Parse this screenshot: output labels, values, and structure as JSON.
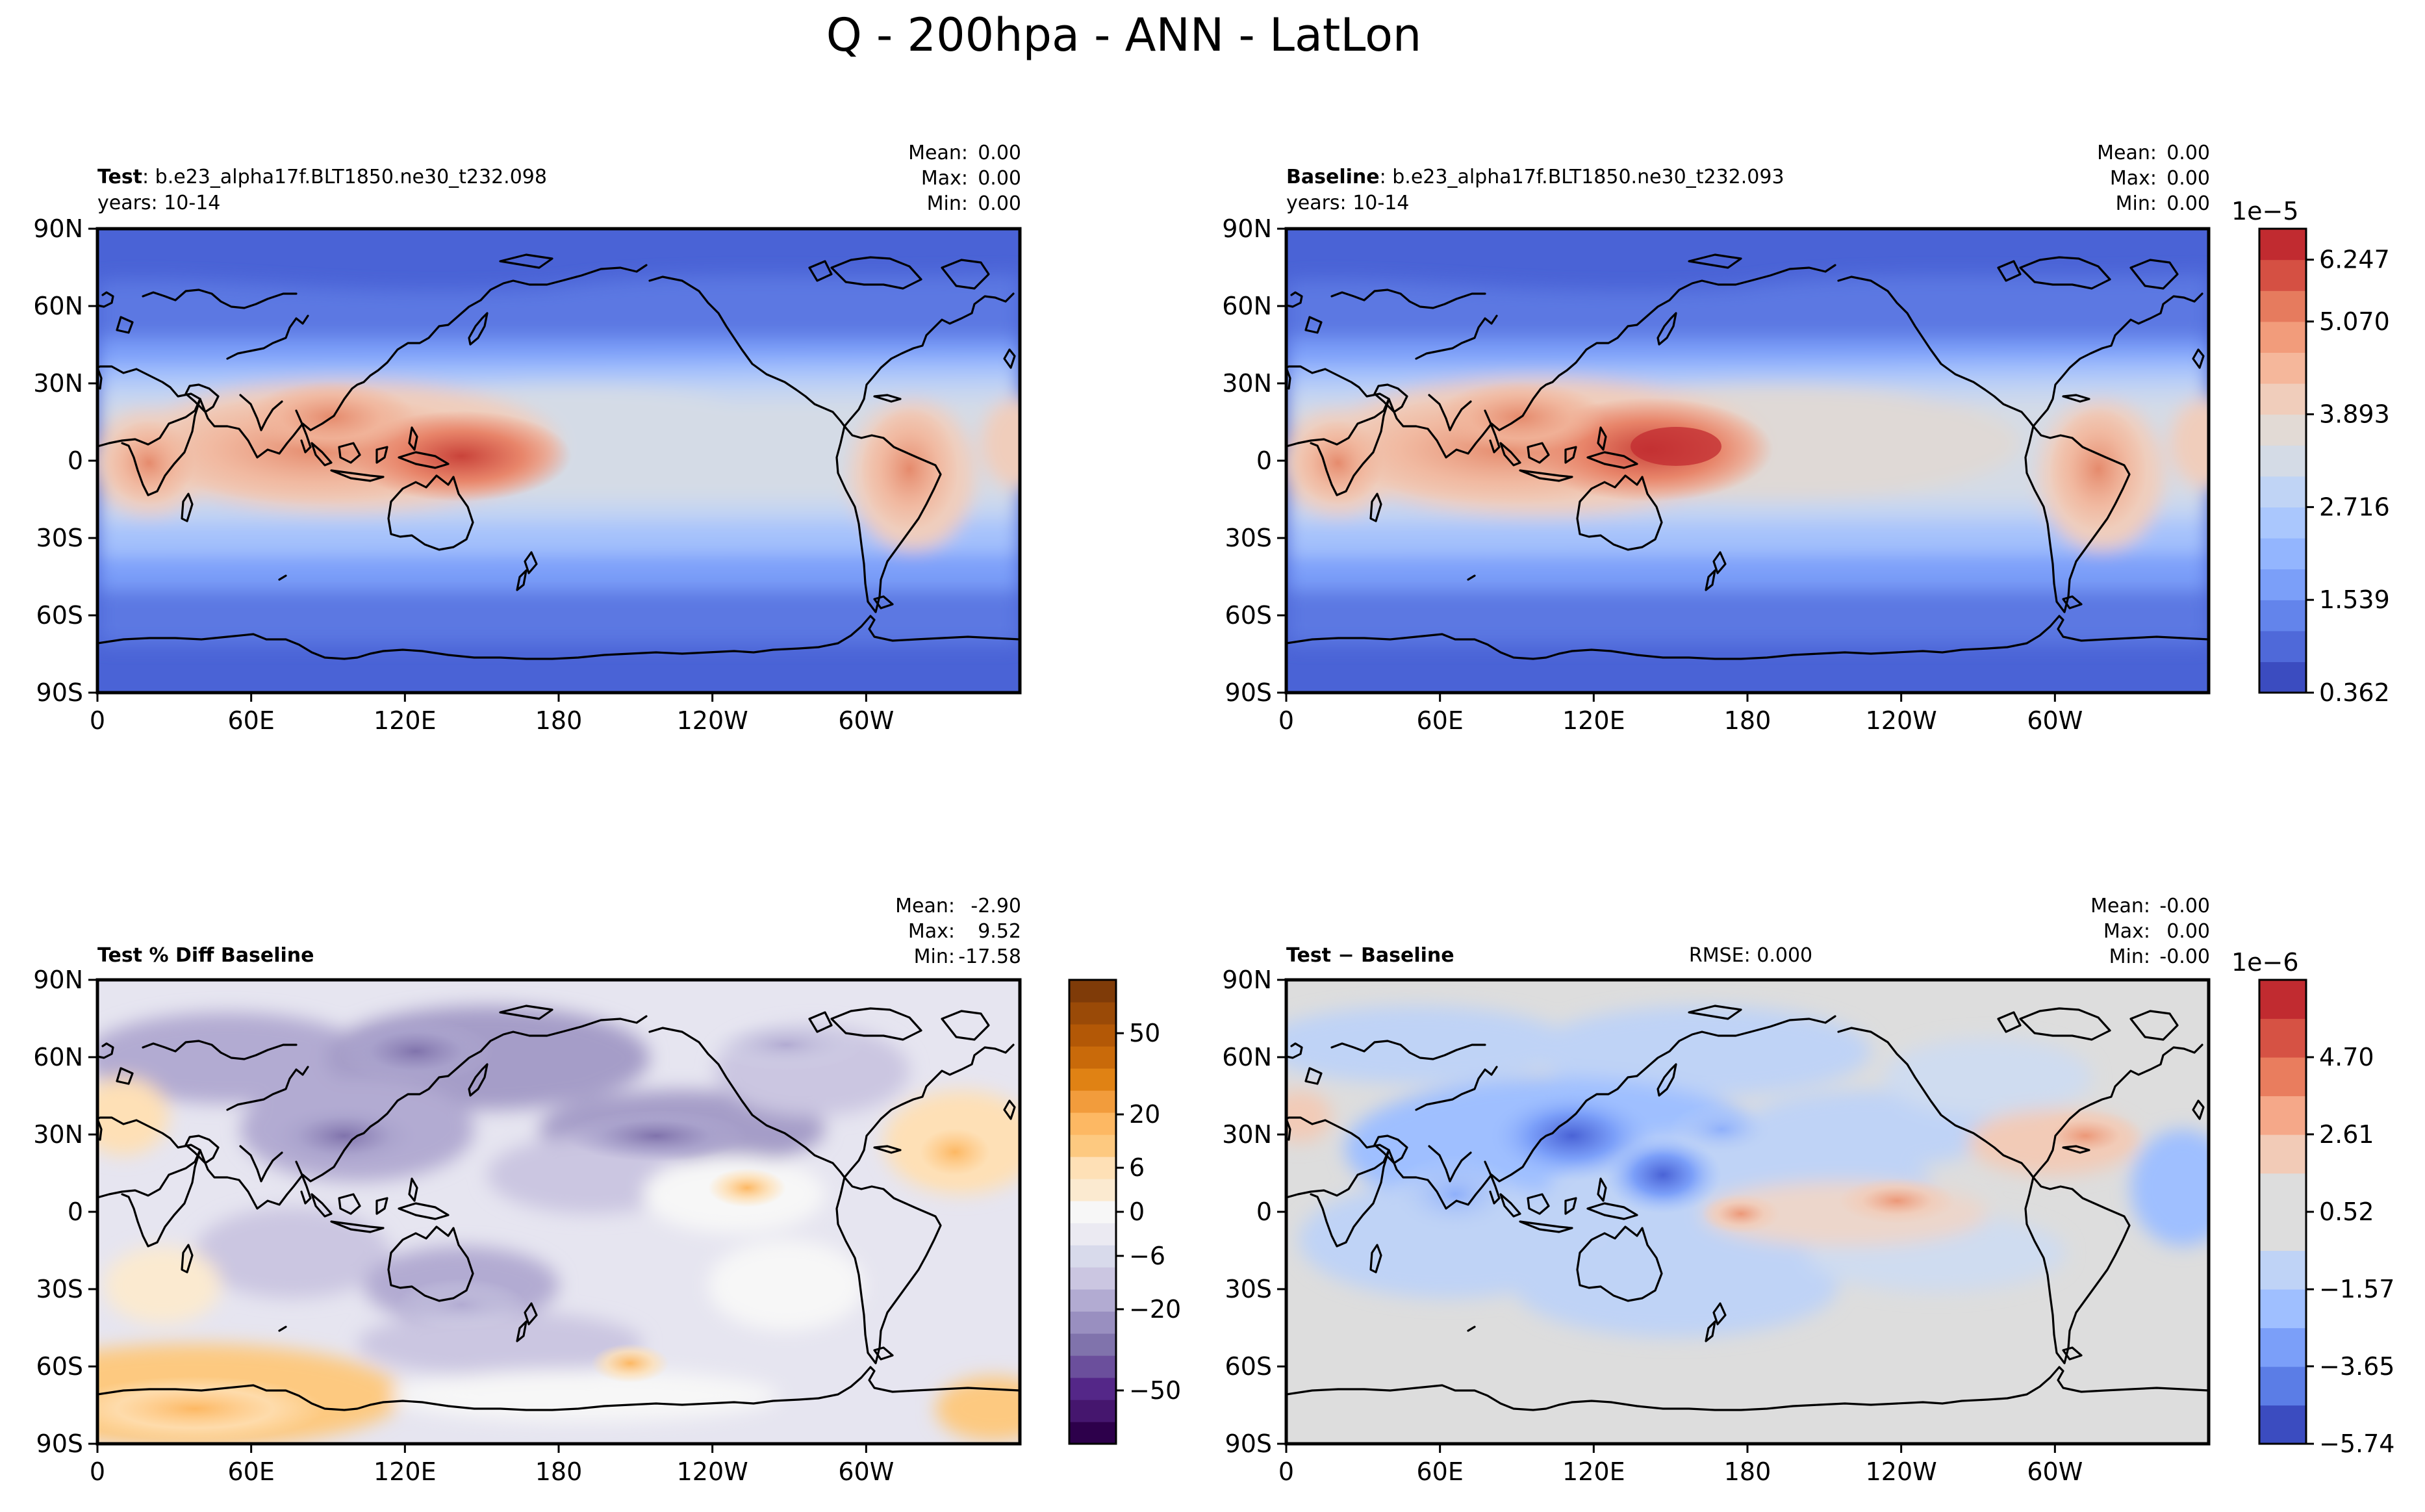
{
  "figure": {
    "title": "Q - 200hpa - ANN - LatLon"
  },
  "axes": {
    "lat_ticks": [
      "90N",
      "60N",
      "30N",
      "0",
      "30S",
      "60S",
      "90S"
    ],
    "lon_ticks": [
      "0",
      "60E",
      "120E",
      "180",
      "120W",
      "60W"
    ]
  },
  "panels": [
    {
      "key": "test",
      "title_bold": "Test",
      "title_rest": ": b.e23_alpha17f.BLT1850.ne30_t232.098",
      "subtitle": "years: 10-14",
      "stats": {
        "mean_label": "Mean:",
        "mean": "0.00",
        "max_label": "Max:",
        "max": "0.00",
        "min_label": "Min:",
        "min": "0.00"
      }
    },
    {
      "key": "baseline",
      "title_bold": "Baseline",
      "title_rest": ": b.e23_alpha17f.BLT1850.ne30_t232.093",
      "subtitle": "years: 10-14",
      "stats": {
        "mean_label": "Mean:",
        "mean": "0.00",
        "max_label": "Max:",
        "max": "0.00",
        "min_label": "Min:",
        "min": "0.00"
      }
    },
    {
      "key": "pctdiff",
      "title_bold": "Test % Diff Baseline",
      "title_rest": "",
      "subtitle": "",
      "stats": {
        "mean_label": "Mean:",
        "mean": "-2.90",
        "max_label": "Max:",
        "max": "9.52",
        "min_label": "Min:",
        "min": "-17.58"
      }
    },
    {
      "key": "diff",
      "title_bold": "Test − Baseline",
      "title_rest": "",
      "subtitle": "",
      "center_text": "RMSE: 0.000",
      "stats": {
        "mean_label": "Mean:",
        "mean": "-0.00",
        "max_label": "Max:",
        "max": "0.00",
        "min_label": "Min:",
        "min": "-0.00"
      }
    }
  ],
  "colorbars": {
    "main": {
      "exponent": "1e−5",
      "tick_labels": [
        "0.362",
        "1.539",
        "2.716",
        "3.893",
        "5.070",
        "6.247"
      ],
      "colors": [
        "#3b4cc0",
        "#4f69d9",
        "#6384eb",
        "#7b9ff9",
        "#93b5fe",
        "#aac7fd",
        "#c0d4f5",
        "#d4dbe6",
        "#e2dad5",
        "#f0cdbb",
        "#f5b79b",
        "#f29c7b",
        "#e67b5e",
        "#d55043",
        "#c12b30"
      ]
    },
    "pct": {
      "tick_labels": [
        "50",
        "20",
        "6",
        "0",
        "−6",
        "−20",
        "−50"
      ],
      "colors": [
        "#2d004b",
        "#45166e",
        "#542788",
        "#6b4f9c",
        "#8073ac",
        "#998fc0",
        "#b2abd2",
        "#cbc6e1",
        "#d8daeb",
        "#ebeaf2",
        "#f7f7f7",
        "#fbead0",
        "#fee0b6",
        "#fdc980",
        "#fdb863",
        "#f29c3c",
        "#e08214",
        "#c96a0a",
        "#b35806",
        "#9a4a07",
        "#7f3b08"
      ]
    },
    "diff": {
      "exponent": "1e−6",
      "tick_labels": [
        "−5.74",
        "−3.65",
        "−1.57",
        "0.52",
        "2.61",
        "4.70"
      ],
      "colors": [
        "#3b4cc0",
        "#5b7de6",
        "#7b9ff9",
        "#9fbfff",
        "#bfd3f6",
        "#dddddd",
        "#dddddd",
        "#f2cbb7",
        "#f5a889",
        "#e97d5e",
        "#d65244",
        "#c12b30"
      ]
    }
  },
  "chart_data": [
    {
      "type": "heatmap",
      "title": "Test: b.e23_alpha17f.BLT1850.ne30_t232.098",
      "variable": "Q",
      "level": "200hpa",
      "season": "ANN",
      "years": "10-14",
      "xlim": [
        0,
        360
      ],
      "ylim": [
        -90,
        90
      ],
      "xticks": [
        "0",
        "60E",
        "120E",
        "180",
        "120W",
        "60W"
      ],
      "yticks": [
        "90N",
        "60N",
        "30N",
        "0",
        "30S",
        "60S",
        "90S"
      ],
      "colorbar_scale": "1e−5",
      "levels": [
        0.362,
        0.754,
        1.147,
        1.539,
        1.931,
        2.324,
        2.716,
        3.108,
        3.501,
        3.893,
        4.285,
        4.678,
        5.07,
        5.462,
        5.855,
        6.247,
        6.639
      ],
      "stats": {
        "mean": 0.0,
        "max": 0.0,
        "min": 0.0
      },
      "features": [
        {
          "lon": 140,
          "lat": 2,
          "value": 5.7
        },
        {
          "lon": 95,
          "lat": 12,
          "value": 5.0
        },
        {
          "lon": 20,
          "lat": 0,
          "value": 4.7
        },
        {
          "lon": 300,
          "lat": -5,
          "value": 4.8
        },
        {
          "lon": 220,
          "lat": 0,
          "value": 3.9
        },
        {
          "lon": 0,
          "lat": 50,
          "value": 1.5
        },
        {
          "lon": 0,
          "lat": -55,
          "value": 1.1
        },
        {
          "lon": 0,
          "lat": 85,
          "value": 0.4
        },
        {
          "lon": 0,
          "lat": -85,
          "value": 0.4
        }
      ]
    },
    {
      "type": "heatmap",
      "title": "Baseline: b.e23_alpha17f.BLT1850.ne30_t232.093",
      "variable": "Q",
      "level": "200hpa",
      "season": "ANN",
      "years": "10-14",
      "xlim": [
        0,
        360
      ],
      "ylim": [
        -90,
        90
      ],
      "colorbar_scale": "1e−5",
      "levels": [
        0.362,
        0.754,
        1.147,
        1.539,
        1.931,
        2.324,
        2.716,
        3.108,
        3.501,
        3.893,
        4.285,
        4.678,
        5.07,
        5.462,
        5.855,
        6.247,
        6.639
      ],
      "stats": {
        "mean": 0.0,
        "max": 0.0,
        "min": 0.0
      },
      "features": [
        {
          "lon": 140,
          "lat": 2,
          "value": 6.3
        },
        {
          "lon": 95,
          "lat": 12,
          "value": 5.1
        },
        {
          "lon": 20,
          "lat": 0,
          "value": 4.8
        },
        {
          "lon": 300,
          "lat": -5,
          "value": 4.9
        },
        {
          "lon": 220,
          "lat": 0,
          "value": 4.0
        }
      ]
    },
    {
      "type": "heatmap",
      "title": "Test % Diff Baseline",
      "xlim": [
        0,
        360
      ],
      "ylim": [
        -90,
        90
      ],
      "levels": [
        -100,
        -75,
        -50,
        -40,
        -30,
        -20,
        -15,
        -10,
        -6,
        -3,
        -1,
        1,
        3,
        6,
        10,
        15,
        20,
        30,
        40,
        50,
        75,
        100
      ],
      "colorbar_ticks": [
        50,
        20,
        6,
        0,
        -6,
        -20,
        -50
      ],
      "stats": {
        "mean": -2.9,
        "max": 9.52,
        "min": -17.58
      },
      "features": [
        {
          "lon": 45,
          "lat": -80,
          "value": 8
        },
        {
          "lon": 330,
          "lat": 30,
          "value": 6
        },
        {
          "lon": 140,
          "lat": 30,
          "value": -8
        },
        {
          "lon": 120,
          "lat": 80,
          "value": -8
        }
      ]
    },
    {
      "type": "heatmap",
      "title": "Test − Baseline",
      "xlim": [
        0,
        360
      ],
      "ylim": [
        -90,
        90
      ],
      "colorbar_scale": "1e−6",
      "levels": [
        -6.78,
        -5.74,
        -4.7,
        -3.65,
        -2.61,
        -1.57,
        -0.52,
        0.52,
        1.57,
        2.61,
        3.65,
        4.7,
        5.74
      ],
      "rmse": 0.0,
      "stats": {
        "mean": -0.0,
        "max": 0.0,
        "min": -0.0
      },
      "features": [
        {
          "lon": 110,
          "lat": 25,
          "value": -4.5
        },
        {
          "lon": 140,
          "lat": 5,
          "value": -3.5
        },
        {
          "lon": 180,
          "lat": 0,
          "value": 1.8
        },
        {
          "lon": 230,
          "lat": 5,
          "value": 1.5
        },
        {
          "lon": 300,
          "lat": 25,
          "value": 1.2
        }
      ]
    }
  ]
}
